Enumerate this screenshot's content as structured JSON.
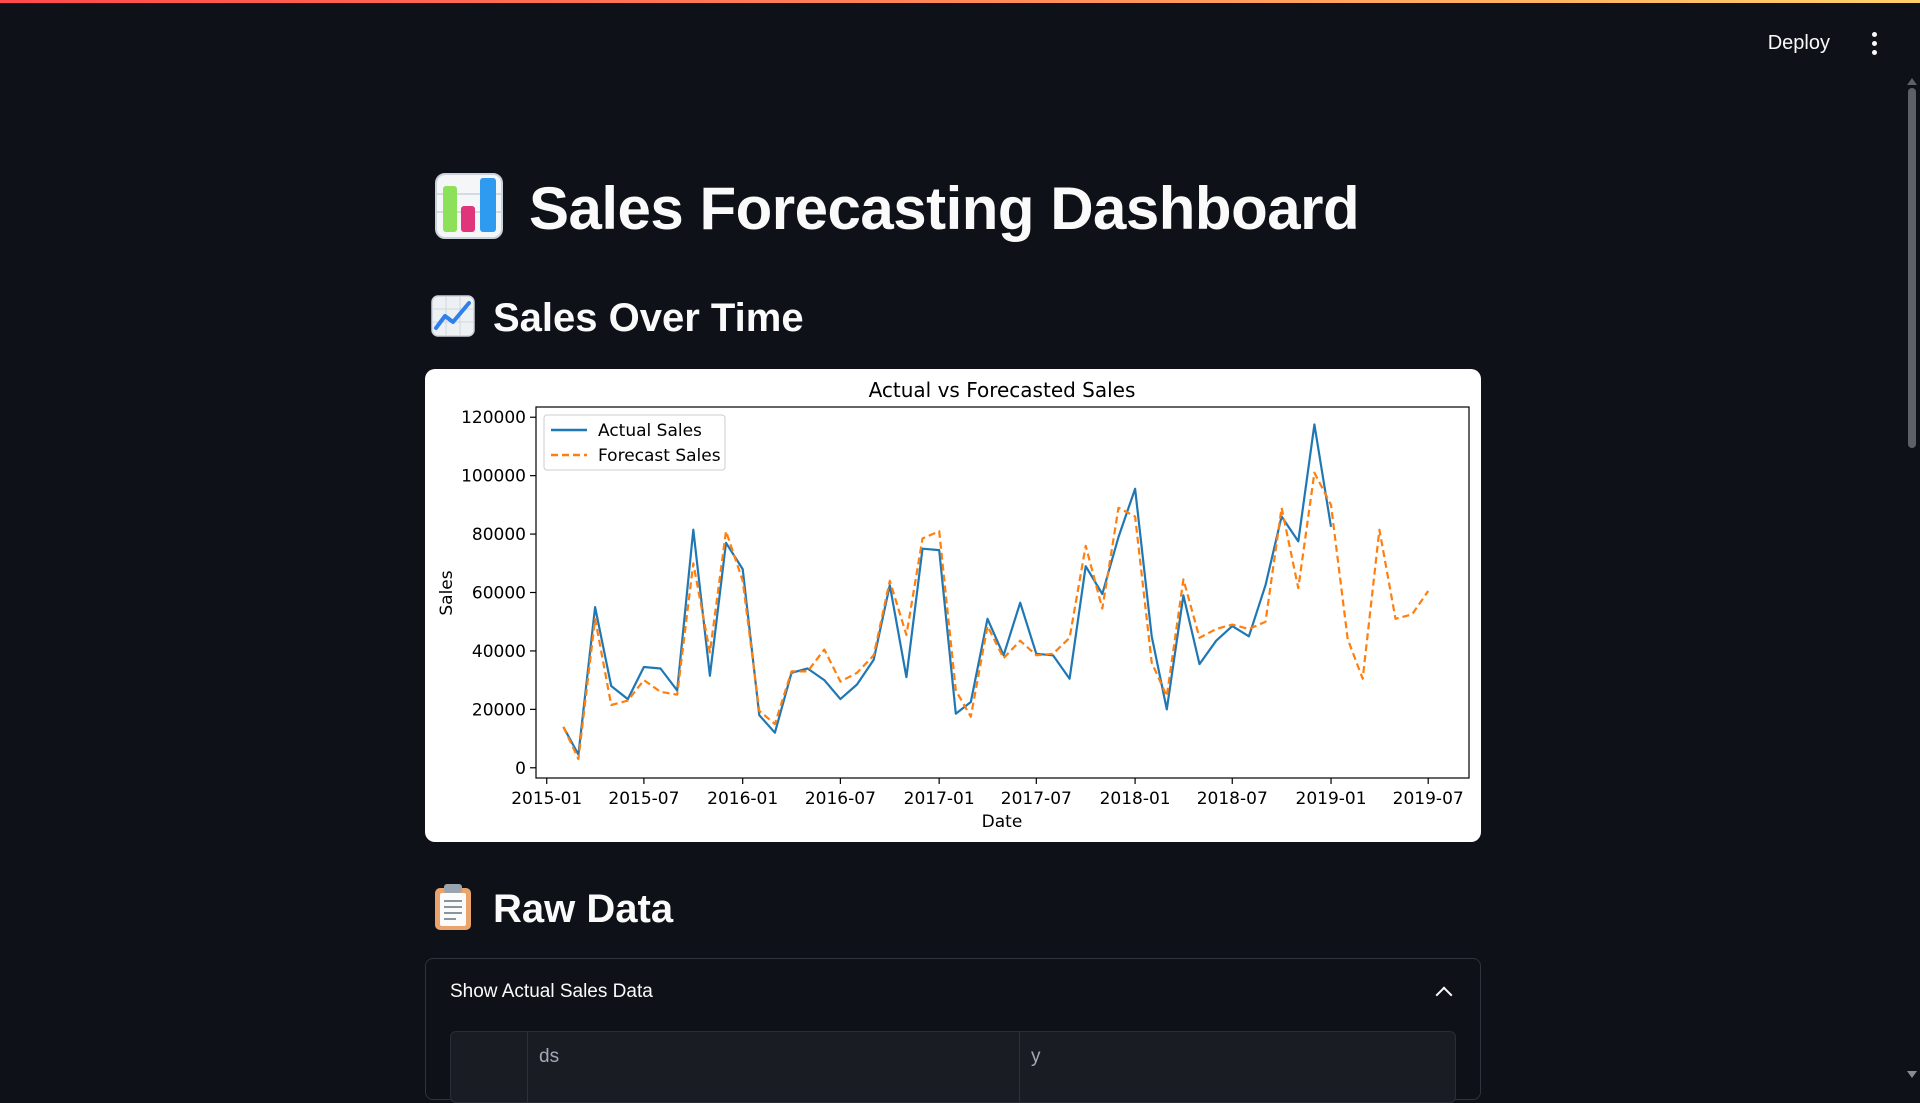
{
  "header": {
    "deploy_label": "Deploy",
    "menu_icon": "kebab-menu-icon"
  },
  "page": {
    "title": "Sales Forecasting Dashboard",
    "title_icon": "bar-chart-icon",
    "sections": [
      {
        "title": "Sales Over Time",
        "icon": "chart-increasing-icon"
      },
      {
        "title": "Raw Data",
        "icon": "clipboard-icon"
      }
    ]
  },
  "expander": {
    "label": "Show Actual Sales Data",
    "expanded": true,
    "table": {
      "columns": [
        "ds",
        "y"
      ]
    }
  },
  "colors": {
    "background": "#0e1117",
    "actual": "#1f77b4",
    "forecast": "#ff7f0e",
    "accent": "#ff4b4b"
  },
  "chart_data": {
    "type": "line",
    "title": "Actual vs Forecasted Sales",
    "xlabel": "Date",
    "ylabel": "Sales",
    "x_ticks": [
      "2015-01",
      "2015-07",
      "2016-01",
      "2016-07",
      "2017-01",
      "2017-07",
      "2018-01",
      "2018-07",
      "2019-01",
      "2019-07"
    ],
    "y_ticks": [
      0,
      20000,
      40000,
      60000,
      80000,
      100000,
      120000
    ],
    "xlim": [
      "2014-12-12",
      "2019-09-15"
    ],
    "ylim": [
      -3500,
      123500
    ],
    "legend": "top-left",
    "grid": false,
    "series": [
      {
        "name": "Actual Sales",
        "style": "solid",
        "color": "#1f77b4",
        "x": [
          "2015-02",
          "2015-03",
          "2015-04",
          "2015-05",
          "2015-06",
          "2015-07",
          "2015-08",
          "2015-09",
          "2015-10",
          "2015-11",
          "2015-12",
          "2016-01",
          "2016-02",
          "2016-03",
          "2016-04",
          "2016-05",
          "2016-06",
          "2016-07",
          "2016-08",
          "2016-09",
          "2016-10",
          "2016-11",
          "2016-12",
          "2017-01",
          "2017-02",
          "2017-03",
          "2017-04",
          "2017-05",
          "2017-06",
          "2017-07",
          "2017-08",
          "2017-09",
          "2017-10",
          "2017-11",
          "2017-12",
          "2018-01",
          "2018-02",
          "2018-03",
          "2018-04",
          "2018-05",
          "2018-06",
          "2018-07",
          "2018-08",
          "2018-09",
          "2018-10",
          "2018-11",
          "2018-12",
          "2019-01"
        ],
        "y": [
          14000,
          4500,
          55000,
          28000,
          23500,
          34500,
          34000,
          26500,
          81500,
          31500,
          77000,
          68000,
          18000,
          12000,
          32500,
          34000,
          30000,
          23500,
          28500,
          37000,
          62500,
          31000,
          75000,
          74500,
          18500,
          22500,
          51000,
          38500,
          56500,
          39000,
          38500,
          30500,
          69000,
          59500,
          79000,
          95500,
          45000,
          20000,
          59000,
          35500,
          43500,
          48500,
          45000,
          62500,
          86000,
          77500,
          117500,
          82500
        ]
      },
      {
        "name": "Forecast Sales",
        "style": "dashed",
        "color": "#ff7f0e",
        "x": [
          "2015-02",
          "2015-03",
          "2015-04",
          "2015-05",
          "2015-06",
          "2015-07",
          "2015-08",
          "2015-09",
          "2015-10",
          "2015-11",
          "2015-12",
          "2016-01",
          "2016-02",
          "2016-03",
          "2016-04",
          "2016-05",
          "2016-06",
          "2016-07",
          "2016-08",
          "2016-09",
          "2016-10",
          "2016-11",
          "2016-12",
          "2017-01",
          "2017-02",
          "2017-03",
          "2017-04",
          "2017-05",
          "2017-06",
          "2017-07",
          "2017-08",
          "2017-09",
          "2017-10",
          "2017-11",
          "2017-12",
          "2018-01",
          "2018-02",
          "2018-03",
          "2018-04",
          "2018-05",
          "2018-06",
          "2018-07",
          "2018-08",
          "2018-09",
          "2018-10",
          "2018-11",
          "2018-12",
          "2019-01",
          "2019-02",
          "2019-03",
          "2019-04",
          "2019-05",
          "2019-06",
          "2019-07"
        ],
        "y": [
          14000,
          3000,
          51000,
          21500,
          23000,
          30000,
          26000,
          25000,
          70000,
          39500,
          81000,
          64000,
          19500,
          15000,
          33000,
          33000,
          40500,
          29500,
          32500,
          38500,
          64000,
          45500,
          78500,
          81000,
          26500,
          17500,
          48500,
          37500,
          43500,
          38500,
          39000,
          44500,
          76000,
          54500,
          89000,
          86000,
          36000,
          24500,
          64500,
          44500,
          47500,
          49000,
          47500,
          50000,
          89000,
          61500,
          101000,
          90000,
          44000,
          30500,
          81500,
          51000,
          52500,
          60500
        ]
      }
    ]
  }
}
